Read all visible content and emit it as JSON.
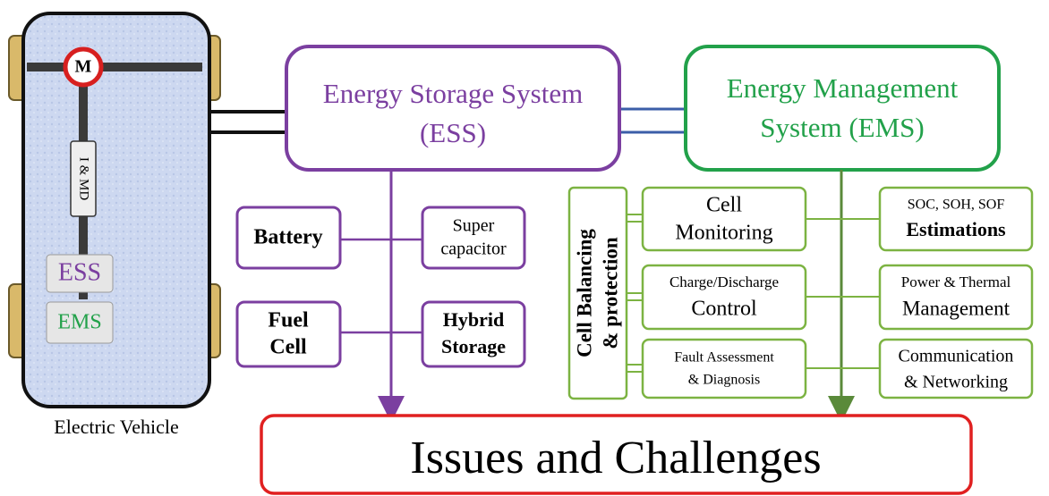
{
  "vehicle": {
    "motor": "M",
    "controller": "I & MD",
    "ess": "ESS",
    "ems": "EMS",
    "caption": "Electric Vehicle"
  },
  "ess": {
    "title": [
      "Energy Storage System",
      "(ESS)"
    ],
    "types": [
      [
        "Battery"
      ],
      [
        "Super",
        "capacitor"
      ],
      [
        "Fuel",
        "Cell"
      ],
      [
        "Hybrid",
        "Storage"
      ]
    ]
  },
  "ems": {
    "title": [
      "Energy Management",
      "System (EMS)"
    ],
    "side": [
      "Cell Balancing",
      "& protection"
    ],
    "left": [
      [
        "Cell",
        "Monitoring"
      ],
      [
        "Charge/Discharge",
        "Control"
      ],
      [
        "Fault Assessment",
        "& Diagnosis"
      ]
    ],
    "right": [
      [
        "SOC, SOH, SOF",
        "Estimations"
      ],
      [
        "Power & Thermal",
        "Management"
      ],
      [
        "Communication",
        "& Networking"
      ]
    ]
  },
  "bottom": "Issues and Challenges"
}
